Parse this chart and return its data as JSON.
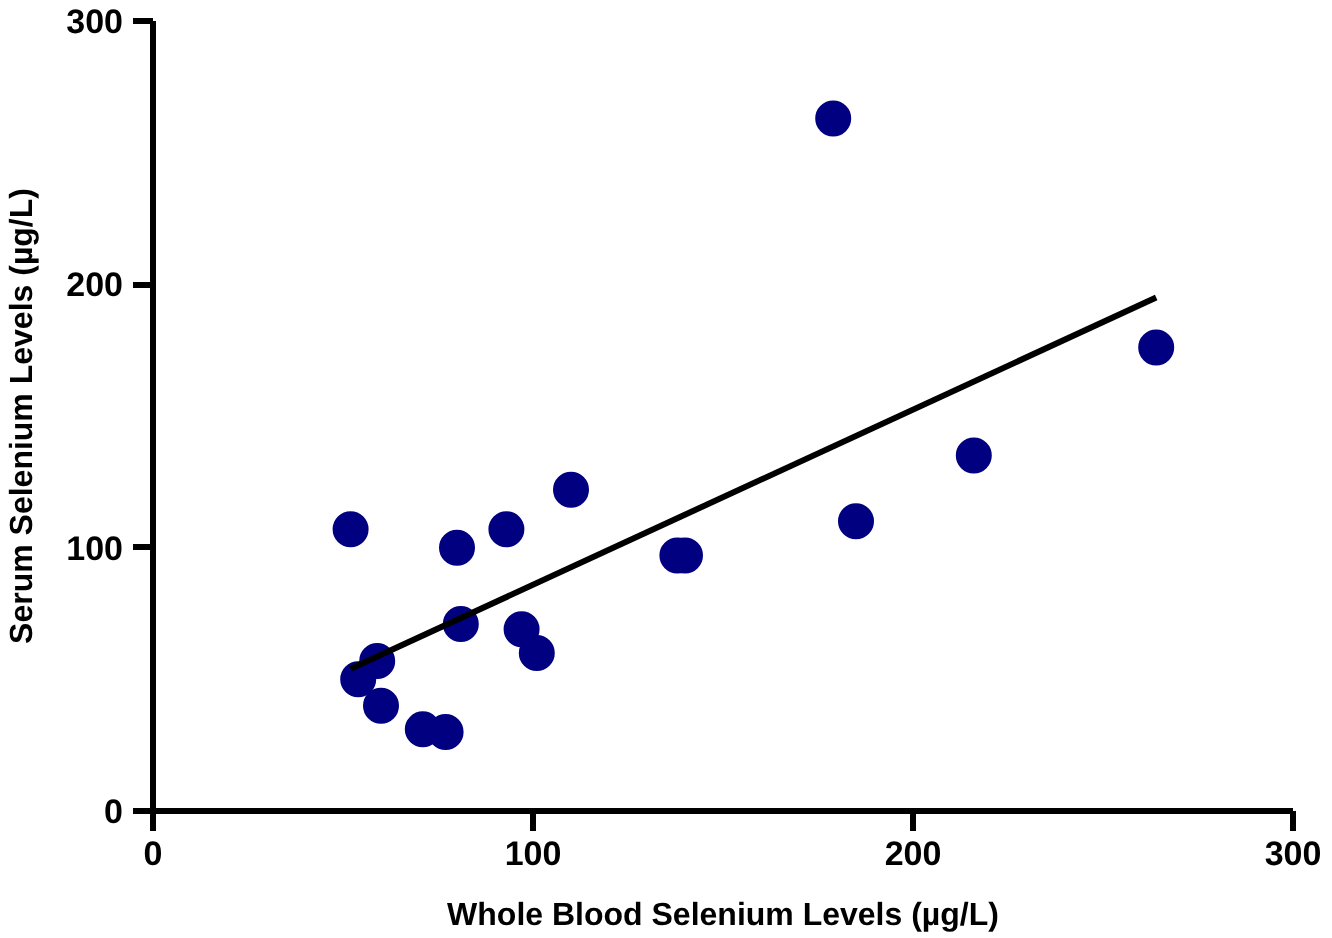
{
  "chart_data": {
    "type": "scatter",
    "xlabel": "Whole Blood Selenium Levels (µg/L)",
    "ylabel": "Serum Selenium Levels (µg/L)",
    "xlim": [
      0,
      300
    ],
    "ylim": [
      0,
      300
    ],
    "xticks": [
      0,
      100,
      200,
      300
    ],
    "yticks": [
      0,
      100,
      200,
      300
    ],
    "grid": false,
    "series": [
      {
        "marker": "circle",
        "color": "#000080",
        "x": [
          52,
          80,
          93,
          110,
          138,
          140,
          81,
          97,
          101,
          59,
          54,
          60,
          71,
          77,
          179,
          264,
          216,
          185
        ],
        "values": [
          107,
          100,
          107,
          122,
          97,
          97,
          71,
          69,
          60,
          57,
          50,
          40,
          31,
          30,
          263,
          176,
          135,
          110
        ]
      },
      {
        "type": "line",
        "color": "#000000",
        "line_style": "solid",
        "x": [
          52,
          264
        ],
        "values": [
          54,
          195
        ]
      }
    ]
  }
}
